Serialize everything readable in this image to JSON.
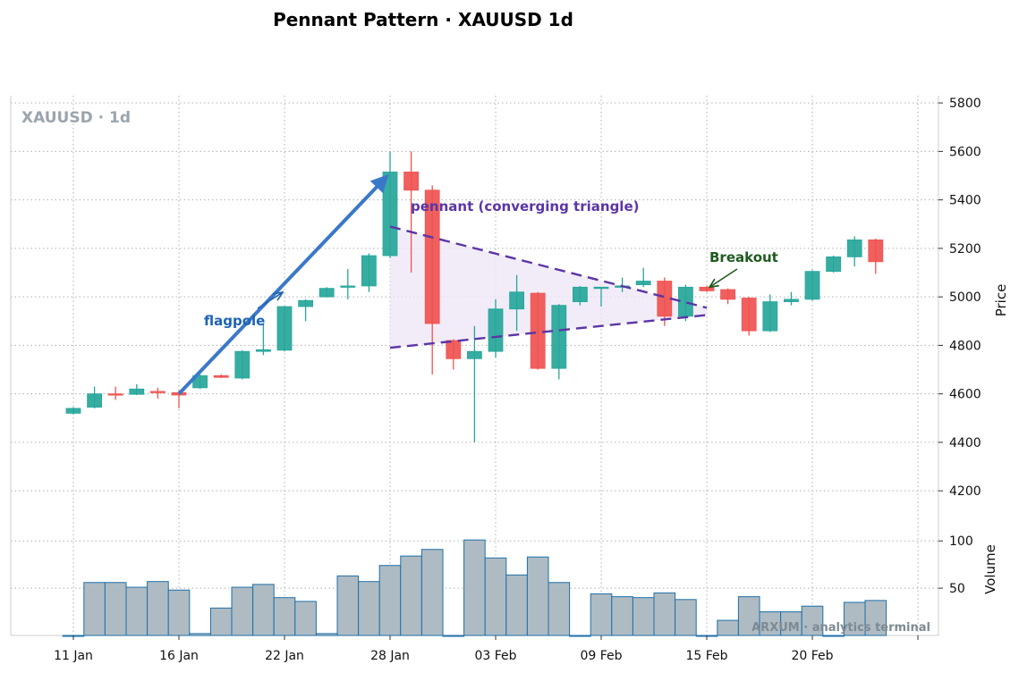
{
  "title": "Pennant Pattern · XAUUSD 1d",
  "watermark": "XAUUSD · 1d",
  "credit": "ARXUM · analytics terminal",
  "colors": {
    "up": "#26a69a",
    "down": "#ef5350",
    "volume_fill": "#aebbc3",
    "volume_edge": "#1f6fa8",
    "flagpole": "#3a78c9",
    "pennant": "#5b35a6",
    "pennant_fill": "#ede7f6",
    "breakout": "#1e5b1e"
  },
  "chart_data": {
    "type": "candlestick",
    "title": "Pennant Pattern · XAUUSD 1d",
    "ylabel_price": "Price",
    "ylabel_volume": "Volume",
    "grid": true,
    "price_ticks": [
      4200,
      4400,
      4600,
      4800,
      5000,
      5200,
      5400,
      5600,
      5800
    ],
    "volume_ticks": [
      50,
      100
    ],
    "ylim_price": [
      4090,
      5830
    ],
    "ylim_volume": [
      0,
      121
    ],
    "x_tick_labels": [
      "11 Jan",
      "16 Jan",
      "22 Jan",
      "28 Jan",
      "03 Feb",
      "09 Feb",
      "15 Feb",
      "20 Feb"
    ],
    "x_tick_index": [
      0,
      5,
      10,
      15,
      20,
      25,
      30,
      35
    ],
    "candles": [
      {
        "open": 4520,
        "high": 4545,
        "low": 4515,
        "close": 4540,
        "volume": 0
      },
      {
        "open": 4545,
        "high": 4630,
        "low": 4540,
        "close": 4600,
        "volume": 56
      },
      {
        "open": 4600,
        "high": 4630,
        "low": 4575,
        "close": 4595,
        "volume": 56
      },
      {
        "open": 4598,
        "high": 4640,
        "low": 4595,
        "close": 4620,
        "volume": 51
      },
      {
        "open": 4610,
        "high": 4625,
        "low": 4580,
        "close": 4605,
        "volume": 57
      },
      {
        "open": 4605,
        "high": 4615,
        "low": 4540,
        "close": 4595,
        "volume": 48
      },
      {
        "open": 4625,
        "high": 4680,
        "low": 4620,
        "close": 4675,
        "volume": 2
      },
      {
        "open": 4675,
        "high": 4680,
        "low": 4665,
        "close": 4668,
        "volume": 29
      },
      {
        "open": 4665,
        "high": 4780,
        "low": 4660,
        "close": 4775,
        "volume": 51
      },
      {
        "open": 4775,
        "high": 4890,
        "low": 4760,
        "close": 4782,
        "volume": 54
      },
      {
        "open": 4780,
        "high": 4960,
        "low": 4775,
        "close": 4960,
        "volume": 40
      },
      {
        "open": 4960,
        "high": 4990,
        "low": 4900,
        "close": 4985,
        "volume": 36
      },
      {
        "open": 5000,
        "high": 5040,
        "low": 4998,
        "close": 5035,
        "volume": 2
      },
      {
        "open": 5040,
        "high": 5115,
        "low": 4990,
        "close": 5045,
        "volume": 63
      },
      {
        "open": 5045,
        "high": 5180,
        "low": 5020,
        "close": 5170,
        "volume": 57
      },
      {
        "open": 5170,
        "high": 5600,
        "low": 5160,
        "close": 5515,
        "volume": 74
      },
      {
        "open": 5515,
        "high": 5600,
        "low": 5100,
        "close": 5440,
        "volume": 84
      },
      {
        "open": 5440,
        "high": 5460,
        "low": 4680,
        "close": 4890,
        "volume": 91
      },
      {
        "open": 4820,
        "high": 4825,
        "low": 4700,
        "close": 4745,
        "volume": 0
      },
      {
        "open": 4745,
        "high": 4880,
        "low": 4400,
        "close": 4775,
        "volume": 101
      },
      {
        "open": 4775,
        "high": 4990,
        "low": 4750,
        "close": 4950,
        "volume": 82
      },
      {
        "open": 4950,
        "high": 5090,
        "low": 4860,
        "close": 5020,
        "volume": 64
      },
      {
        "open": 5015,
        "high": 5020,
        "low": 4700,
        "close": 4705,
        "volume": 83
      },
      {
        "open": 4705,
        "high": 4970,
        "low": 4660,
        "close": 4965,
        "volume": 56
      },
      {
        "open": 4980,
        "high": 5045,
        "low": 4965,
        "close": 5040,
        "volume": 0
      },
      {
        "open": 5035,
        "high": 5040,
        "low": 4960,
        "close": 5040,
        "volume": 44
      },
      {
        "open": 5040,
        "high": 5080,
        "low": 5020,
        "close": 5045,
        "volume": 41
      },
      {
        "open": 5050,
        "high": 5120,
        "low": 5040,
        "close": 5065,
        "volume": 40
      },
      {
        "open": 5065,
        "high": 5080,
        "low": 4880,
        "close": 4920,
        "volume": 45
      },
      {
        "open": 4920,
        "high": 5050,
        "low": 4900,
        "close": 5040,
        "volume": 38
      },
      {
        "open": 5040,
        "high": 5045,
        "low": 5020,
        "close": 5025,
        "volume": 0
      },
      {
        "open": 5030,
        "high": 5035,
        "low": 4970,
        "close": 4990,
        "volume": 16
      },
      {
        "open": 4995,
        "high": 5000,
        "low": 4840,
        "close": 4860,
        "volume": 41
      },
      {
        "open": 4860,
        "high": 5010,
        "low": 4855,
        "close": 4980,
        "volume": 25
      },
      {
        "open": 4980,
        "high": 5020,
        "low": 4965,
        "close": 4990,
        "volume": 25
      },
      {
        "open": 4990,
        "high": 5110,
        "low": 4985,
        "close": 5105,
        "volume": 31
      },
      {
        "open": 5105,
        "high": 5170,
        "low": 5100,
        "close": 5165,
        "volume": 0
      },
      {
        "open": 5165,
        "high": 5250,
        "low": 5125,
        "close": 5235,
        "volume": 35
      },
      {
        "open": 5235,
        "high": 5240,
        "low": 5095,
        "close": 5145,
        "volume": 37
      }
    ],
    "annotations": {
      "flagpole": {
        "label": "flagpole",
        "from": {
          "x": 5,
          "y": 4600
        },
        "to": {
          "x": 15,
          "y": 5510
        }
      },
      "pennant": {
        "label": "pennant (converging triangle)",
        "upper": {
          "from": {
            "x": 15,
            "y": 5290
          },
          "to": {
            "x": 30,
            "y": 4955
          }
        },
        "lower": {
          "from": {
            "x": 15,
            "y": 4790
          },
          "to": {
            "x": 30,
            "y": 4925
          }
        }
      },
      "breakout": {
        "label": "Breakout",
        "point": {
          "x": 30,
          "y": 5025
        }
      }
    }
  }
}
